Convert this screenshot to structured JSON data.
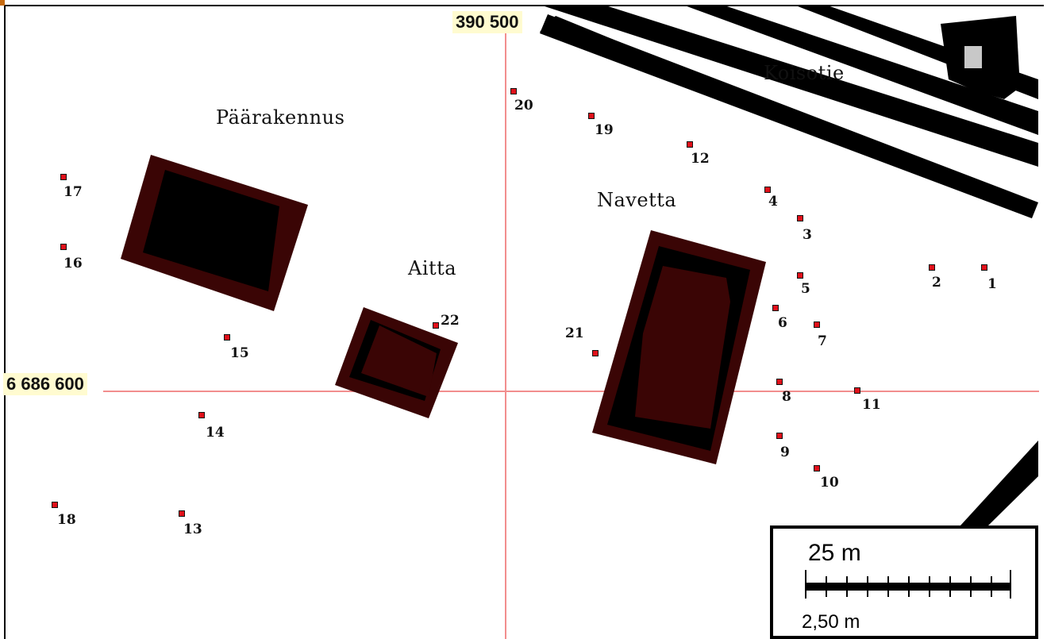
{
  "map": {
    "coordinates": {
      "easting_label": "390 500",
      "northing_label": "6 686 600"
    },
    "place_labels": {
      "koisotie": "Koisotie",
      "paarakennus": "Päärakennus",
      "navetta": "Navetta",
      "aitta": "Aitta"
    },
    "markers": [
      "20",
      "19",
      "12",
      "17",
      "4",
      "3",
      "16",
      "2",
      "1",
      "5",
      "22",
      "6",
      "7",
      "21",
      "15",
      "8",
      "11",
      "14",
      "9",
      "10",
      "18",
      "13"
    ],
    "scale_bar": {
      "label": "25 m",
      "interval": "2,50 m"
    },
    "colors": {
      "building_outer": "#3a0505",
      "building_inner": "#000000",
      "grid_line": "#f28e8e",
      "road": "#000000",
      "marker": "#e0101a",
      "coord_label_bg": "#fffbd0"
    }
  }
}
